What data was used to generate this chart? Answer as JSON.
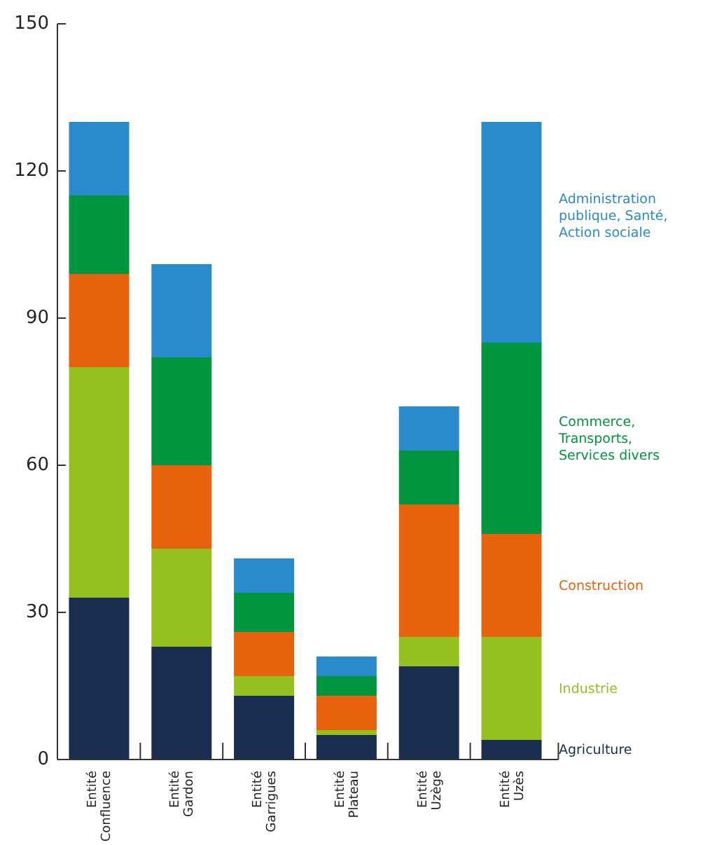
{
  "chart_data": {
    "type": "bar",
    "stacked": true,
    "categories": [
      "Entité Confluence",
      "Entité Gardon",
      "Entité Garrigues",
      "Entité Plateau",
      "Entité Uzège",
      "Entité Uzès"
    ],
    "series": [
      {
        "name": "Agriculture",
        "color": "#1a2e50",
        "values": [
          33,
          23,
          13,
          5,
          19,
          4
        ]
      },
      {
        "name": "Industrie",
        "color": "#95c11f",
        "values": [
          47,
          20,
          4,
          1,
          6,
          21
        ]
      },
      {
        "name": "Construction",
        "color": "#e8620d",
        "values": [
          19,
          17,
          9,
          7,
          27,
          21
        ]
      },
      {
        "name": "Commerce, Transports, Services divers",
        "color": "#00953f",
        "values": [
          16,
          22,
          8,
          4,
          11,
          39
        ]
      },
      {
        "name": "Administration publique, Santé, Action sociale",
        "color": "#2a8bcc",
        "values": [
          15,
          19,
          7,
          4,
          9,
          45
        ]
      }
    ],
    "ylim": [
      0,
      150
    ],
    "yticks": [
      0,
      30,
      60,
      90,
      120,
      150
    ],
    "legend": "right",
    "grid": false
  }
}
